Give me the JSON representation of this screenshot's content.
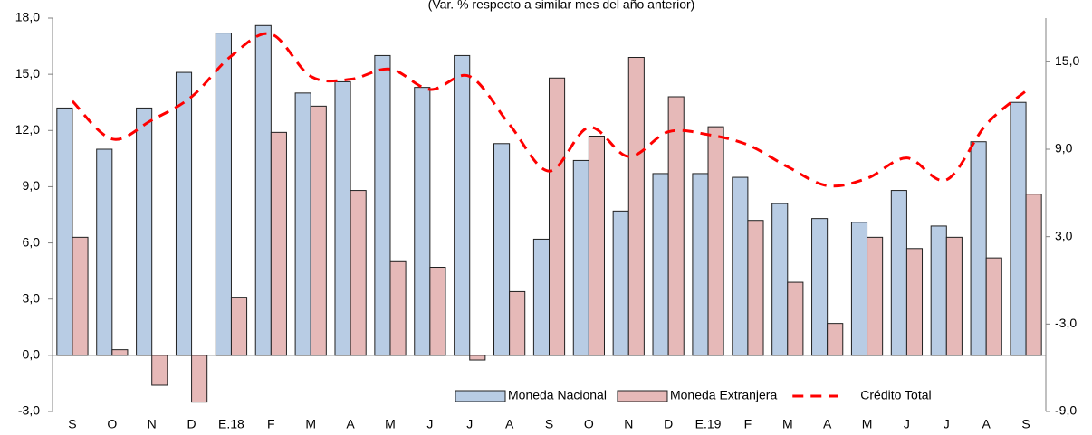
{
  "chart_data": {
    "type": "bar_line",
    "subtitle": "(Var. % respecto a similar mes del año anterior)",
    "categories": [
      "S",
      "O",
      "N",
      "D",
      "E.18",
      "F",
      "M",
      "A",
      "M",
      "J",
      "J",
      "A",
      "S",
      "O",
      "N",
      "D",
      "E.19",
      "F",
      "M",
      "A",
      "M",
      "J",
      "J",
      "A",
      "S"
    ],
    "series": [
      {
        "name": "Moneda Nacional",
        "type": "bar",
        "color": "#b8cce4",
        "axis": "y",
        "values": [
          13.2,
          11.0,
          13.2,
          15.1,
          17.2,
          17.6,
          14.0,
          14.6,
          16.0,
          14.3,
          16.0,
          11.3,
          6.2,
          10.4,
          7.7,
          9.7,
          9.7,
          9.5,
          8.1,
          7.3,
          7.1,
          8.8,
          6.9,
          11.4,
          13.5
        ]
      },
      {
        "name": "Moneda Extranjera",
        "type": "bar",
        "color": "#e6b9b8",
        "axis": "y",
        "values": [
          6.3,
          0.3,
          -1.6,
          -2.5,
          3.1,
          11.9,
          13.3,
          8.8,
          5.0,
          4.7,
          -0.25,
          3.4,
          14.8,
          11.7,
          15.9,
          13.8,
          12.2,
          7.2,
          3.9,
          1.7,
          6.3,
          5.7,
          6.3,
          5.2,
          8.6
        ]
      },
      {
        "name": "Crédito Total",
        "type": "line",
        "color": "#ff0000",
        "axis": "y2",
        "values": [
          12.3,
          9.7,
          11.0,
          12.6,
          15.4,
          16.9,
          14.0,
          13.8,
          14.5,
          13.1,
          14.0,
          10.7,
          7.5,
          10.5,
          8.5,
          10.2,
          10.0,
          9.3,
          7.8,
          6.5,
          7.0,
          8.4,
          6.9,
          10.7,
          13.0
        ]
      }
    ],
    "ylim": [
      -3,
      18
    ],
    "yticks": [
      {
        "value": -3,
        "label": "-3,0"
      },
      {
        "value": 0,
        "label": "0,0"
      },
      {
        "value": 3,
        "label": "3,0"
      },
      {
        "value": 6,
        "label": "6,0"
      },
      {
        "value": 9,
        "label": "9,0"
      },
      {
        "value": 12,
        "label": "12,0"
      },
      {
        "value": 15,
        "label": "15,0"
      },
      {
        "value": 18,
        "label": "18,0"
      }
    ],
    "y2lim": [
      -9,
      18
    ],
    "y2ticks": [
      {
        "value": -9,
        "label": "-9,0"
      },
      {
        "value": -3,
        "label": "-3,0"
      },
      {
        "value": 3,
        "label": "3,0"
      },
      {
        "value": 9,
        "label": "9,0"
      },
      {
        "value": 15,
        "label": "15,0"
      }
    ],
    "legend": "lower right"
  }
}
